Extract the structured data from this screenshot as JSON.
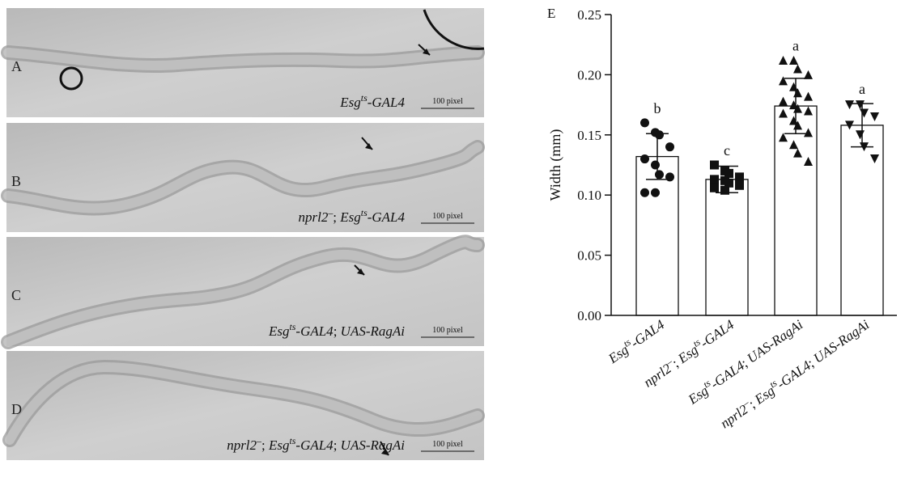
{
  "panels": [
    {
      "label": "A",
      "genotype": [
        {
          "text": "Esg"
        },
        {
          "text": "ts",
          "sup": true
        },
        {
          "text": "-GAL4"
        }
      ],
      "scale_bar": "100 pixel"
    },
    {
      "label": "B",
      "genotype": [
        {
          "text": "nprl2"
        },
        {
          "text": "–",
          "sup": true
        },
        {
          "text": "; ",
          "roman": true
        },
        {
          "text": "Esg"
        },
        {
          "text": "ts",
          "sup": true
        },
        {
          "text": "-GAL4"
        }
      ],
      "scale_bar": "100 pixel"
    },
    {
      "label": "C",
      "genotype": [
        {
          "text": "Esg"
        },
        {
          "text": "ts",
          "sup": true
        },
        {
          "text": "-GAL4"
        },
        {
          "text": "; ",
          "roman": true
        },
        {
          "text": "UAS-RagAi"
        }
      ],
      "scale_bar": "100 pixel"
    },
    {
      "label": "D",
      "genotype": [
        {
          "text": "nprl2"
        },
        {
          "text": "–",
          "sup": true
        },
        {
          "text": "; ",
          "roman": true
        },
        {
          "text": "Esg"
        },
        {
          "text": "ts",
          "sup": true
        },
        {
          "text": "-GAL4"
        },
        {
          "text": "; ",
          "roman": true
        },
        {
          "text": "UAS-RagAi"
        }
      ],
      "scale_bar": "100 pixel"
    }
  ],
  "chart_data": {
    "type": "bar",
    "panel_label": "E",
    "y_label": "Width (mm)",
    "categories": [
      [
        {
          "text": "Esg"
        },
        {
          "text": "ts",
          "sup": true
        },
        {
          "text": "-GAL4"
        }
      ],
      [
        {
          "text": "nprl2"
        },
        {
          "text": "–",
          "sup": true
        },
        {
          "text": "; ",
          "roman": true
        },
        {
          "text": "Esg"
        },
        {
          "text": "ts",
          "sup": true
        },
        {
          "text": "-GAL4"
        }
      ],
      [
        {
          "text": "Esg"
        },
        {
          "text": "ts",
          "sup": true
        },
        {
          "text": "-GAL4"
        },
        {
          "text": "; ",
          "roman": true
        },
        {
          "text": "UAS-RagAi"
        }
      ],
      [
        {
          "text": "nprl2"
        },
        {
          "text": "–",
          "sup": true
        },
        {
          "text": "; ",
          "roman": true
        },
        {
          "text": "Esg"
        },
        {
          "text": "ts",
          "sup": true
        },
        {
          "text": "-GAL4"
        },
        {
          "text": "; ",
          "roman": true
        },
        {
          "text": "UAS-RagAi"
        }
      ]
    ],
    "values": [
      0.132,
      0.113,
      0.174,
      0.158
    ],
    "errors": [
      0.019,
      0.011,
      0.023,
      0.018
    ],
    "significance": [
      "b",
      "c",
      "a",
      "a"
    ],
    "markers": [
      "circle",
      "square",
      "triangle-up",
      "triangle-down"
    ],
    "points": [
      [
        0.16,
        0.152,
        0.15,
        0.14,
        0.13,
        0.125,
        0.117,
        0.115,
        0.102,
        0.102
      ],
      [
        0.125,
        0.12,
        0.118,
        0.115,
        0.113,
        0.112,
        0.11,
        0.108,
        0.106,
        0.104
      ],
      [
        0.212,
        0.212,
        0.205,
        0.2,
        0.195,
        0.19,
        0.185,
        0.182,
        0.178,
        0.175,
        0.172,
        0.17,
        0.168,
        0.162,
        0.158,
        0.152,
        0.148,
        0.142,
        0.135,
        0.128
      ],
      [
        0.175,
        0.175,
        0.168,
        0.165,
        0.158,
        0.15,
        0.14,
        0.13
      ]
    ],
    "color": "#ffffff",
    "ylim": [
      0,
      0.25
    ],
    "yticks": [
      {
        "value": 0,
        "label": "0.00"
      },
      {
        "value": 0.05,
        "label": "0.05"
      },
      {
        "value": 0.1,
        "label": "0.10"
      },
      {
        "value": 0.15,
        "label": "0.15"
      },
      {
        "value": 0.2,
        "label": "0.20"
      },
      {
        "value": 0.25,
        "label": "0.25"
      }
    ]
  }
}
